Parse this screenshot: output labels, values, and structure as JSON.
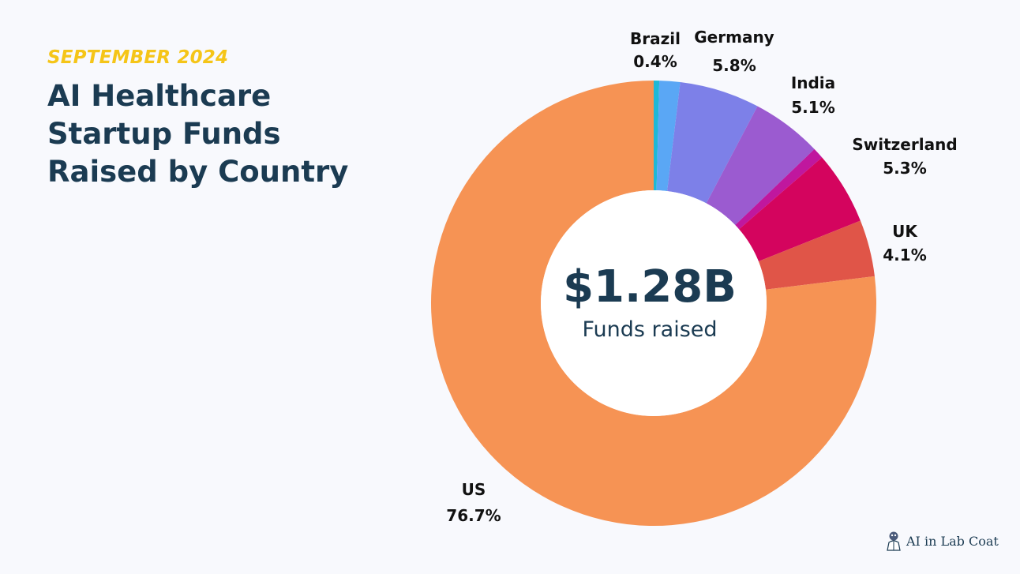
{
  "header": {
    "eyebrow": "SEPTEMBER 2024",
    "title_lines": [
      "AI Healthcare",
      "Startup Funds",
      "Raised by Country"
    ]
  },
  "center": {
    "value": "$1.28B",
    "label": "Funds raised"
  },
  "brand": {
    "name": "AI in Lab Coat"
  },
  "chart_data": {
    "type": "pie",
    "donut": true,
    "title": "AI Healthcare Startup Funds Raised by Country",
    "slices": [
      {
        "key": "brazil",
        "name": "Brazil",
        "value": 0.4,
        "label": "0.4%",
        "color": "#1fb8d6",
        "labeled": true
      },
      {
        "key": "other1",
        "name": "",
        "value": 1.5,
        "label": "",
        "color": "#5aa7f5",
        "labeled": false
      },
      {
        "key": "germany",
        "name": "Germany",
        "value": 5.8,
        "label": "5.8%",
        "color": "#7d80e8",
        "labeled": true
      },
      {
        "key": "india",
        "name": "India",
        "value": 5.1,
        "label": "5.1%",
        "color": "#9b5bd0",
        "labeled": true
      },
      {
        "key": "other2",
        "name": "",
        "value": 0.8,
        "label": "",
        "color": "#c0179e",
        "labeled": false
      },
      {
        "key": "switzerland",
        "name": "Switzerland",
        "value": 5.3,
        "label": "5.3%",
        "color": "#d4045e",
        "labeled": true
      },
      {
        "key": "uk",
        "name": "UK",
        "value": 4.1,
        "label": "4.1%",
        "color": "#e05548",
        "labeled": true
      },
      {
        "key": "us",
        "name": "US",
        "value": 76.7,
        "label": "76.7%",
        "color": "#f69354",
        "labeled": true
      }
    ]
  }
}
